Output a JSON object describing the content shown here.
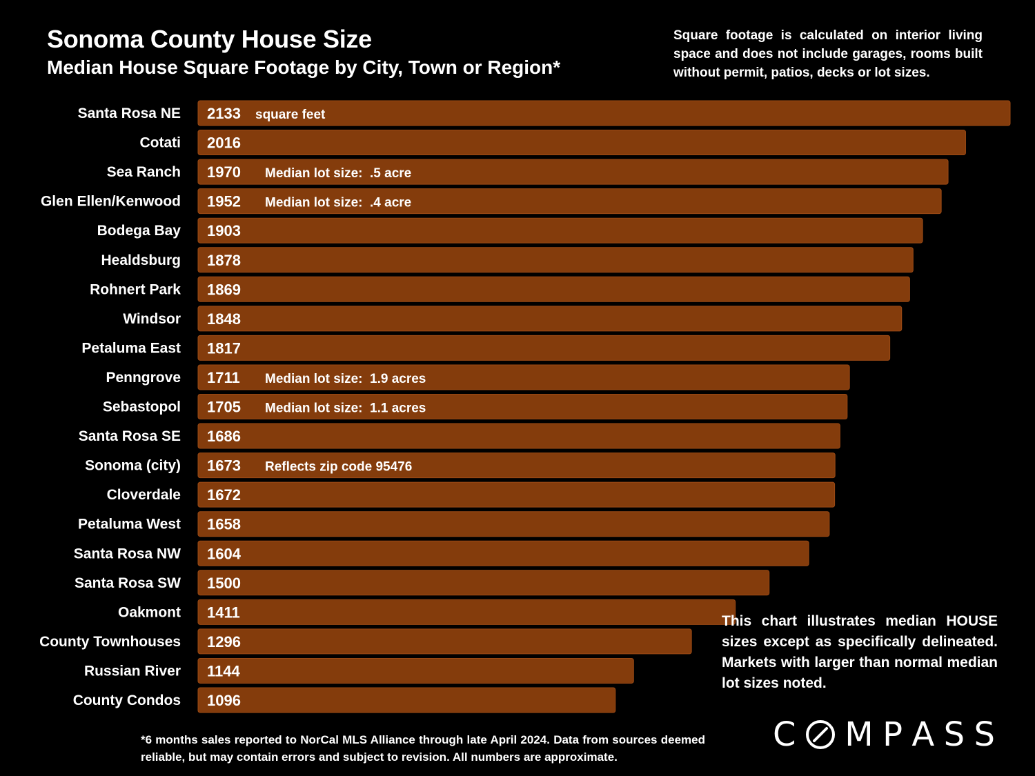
{
  "header": {
    "title": "Sonoma County House Size",
    "subtitle": "Median House Square Footage by City, Town or Region*"
  },
  "notes": {
    "top_right": "Square footage is calculated on interior living space and does not include garages, rooms built without permit, patios, decks or lot sizes.",
    "bottom_right": "This chart illustrates median HOUSE sizes except as specifically delineated. Markets with larger than normal median lot sizes noted.",
    "footnote": "*6 months sales reported to NorCal MLS Alliance through late April 2024. Data from sources deemed reliable, but may contain errors and subject to revision. All numbers are approximate."
  },
  "logo": {
    "text": "COMPASS"
  },
  "colors": {
    "background": "#000000",
    "bar_fill": "#843C0C",
    "bar_stroke": "#9C4A15",
    "text": "#FFFFFF"
  },
  "chart_data": {
    "type": "bar",
    "orientation": "horizontal",
    "title": "Sonoma County House Size",
    "subtitle": "Median House Square Footage by City, Town or Region*",
    "xlabel": "",
    "ylabel": "",
    "unit_label": "square feet",
    "xlim": [
      0,
      2133
    ],
    "grid": false,
    "legend": "none",
    "categories": [
      "Santa Rosa NE",
      "Cotati",
      "Sea Ranch",
      "Glen Ellen/Kenwood",
      "Bodega Bay",
      "Healdsburg",
      "Rohnert Park",
      "Windsor",
      "Petaluma East",
      "Penngrove",
      "Sebastopol",
      "Santa Rosa SE",
      "Sonoma (city)",
      "Cloverdale",
      "Petaluma West",
      "Santa Rosa NW",
      "Santa Rosa SW",
      "Oakmont",
      "County Townhouses",
      "Russian River",
      "County Condos"
    ],
    "values": [
      2133,
      2016,
      1970,
      1952,
      1903,
      1878,
      1869,
      1848,
      1817,
      1711,
      1705,
      1686,
      1673,
      1672,
      1658,
      1604,
      1500,
      1411,
      1296,
      1144,
      1096
    ],
    "annotations": [
      "square feet",
      "",
      "Median lot size:  .5 acre",
      "Median lot size:  .4 acre",
      "",
      "",
      "",
      "",
      "",
      "Median lot size:  1.9 acres",
      "Median lot size:  1.1 acres",
      "",
      "Reflects zip code 95476",
      "",
      "",
      "",
      "",
      "",
      "",
      "",
      ""
    ]
  }
}
